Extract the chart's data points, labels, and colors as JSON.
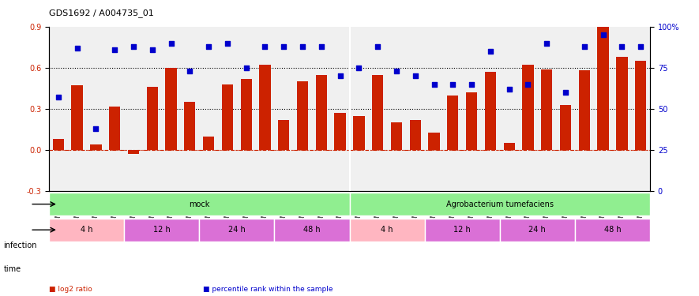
{
  "title": "GDS1692 / A004735_01",
  "samples": [
    "GSM94186",
    "GSM94187",
    "GSM94188",
    "GSM94201",
    "GSM94189",
    "GSM94190",
    "GSM94191",
    "GSM94192",
    "GSM94193",
    "GSM94194",
    "GSM94195",
    "GSM94196",
    "GSM94197",
    "GSM94198",
    "GSM94199",
    "GSM94200",
    "GSM94076",
    "GSM94149",
    "GSM94150",
    "GSM94151",
    "GSM94152",
    "GSM94153",
    "GSM94154",
    "GSM94158",
    "GSM94159",
    "GSM94179",
    "GSM94180",
    "GSM94181",
    "GSM94182",
    "GSM94183",
    "GSM94184",
    "GSM94185"
  ],
  "log2_ratio": [
    0.08,
    0.47,
    0.04,
    0.32,
    -0.03,
    0.46,
    0.6,
    0.35,
    0.1,
    0.48,
    0.52,
    0.62,
    0.22,
    0.5,
    0.55,
    0.27,
    0.25,
    0.55,
    0.2,
    0.22,
    0.13,
    0.4,
    0.42,
    0.57,
    0.05,
    0.62,
    0.59,
    0.33,
    0.58,
    0.9,
    0.68,
    0.65
  ],
  "percentile": [
    0.57,
    0.87,
    0.38,
    0.86,
    0.88,
    0.86,
    0.9,
    0.73,
    0.88,
    0.9,
    0.75,
    0.88,
    0.88,
    0.88,
    0.88,
    0.7,
    0.75,
    0.88,
    0.73,
    0.7,
    0.65,
    0.65,
    0.65,
    0.85,
    0.62,
    0.65,
    0.9,
    0.6,
    0.88,
    0.95,
    0.88,
    0.88
  ],
  "infection_groups": [
    {
      "label": "mock",
      "start": 0,
      "end": 16,
      "color": "#90EE90"
    },
    {
      "label": "Agrobacterium tumefaciens",
      "start": 16,
      "end": 32,
      "color": "#90EE90"
    }
  ],
  "time_groups": [
    {
      "label": "4 h",
      "start": 0,
      "end": 4,
      "color": "#FFB6C1"
    },
    {
      "label": "12 h",
      "start": 4,
      "end": 8,
      "color": "#DA70D6"
    },
    {
      "label": "24 h",
      "start": 8,
      "end": 12,
      "color": "#DA70D6"
    },
    {
      "label": "48 h",
      "start": 12,
      "end": 16,
      "color": "#DA70D6"
    },
    {
      "label": "4 h",
      "start": 16,
      "end": 20,
      "color": "#FFB6C1"
    },
    {
      "label": "12 h",
      "start": 20,
      "end": 24,
      "color": "#DA70D6"
    },
    {
      "label": "24 h",
      "start": 24,
      "end": 28,
      "color": "#DA70D6"
    },
    {
      "label": "48 h",
      "start": 28,
      "end": 32,
      "color": "#DA70D6"
    }
  ],
  "bar_color": "#CC2200",
  "dot_color": "#0000CC",
  "ylim_left": [
    -0.3,
    0.9
  ],
  "ylim_right": [
    0,
    100
  ],
  "yticks_left": [
    -0.3,
    0.0,
    0.3,
    0.6,
    0.9
  ],
  "yticks_right": [
    0,
    25,
    50,
    75,
    100
  ],
  "ytick_right_labels": [
    "0",
    "25",
    "50",
    "75",
    "100%"
  ],
  "hlines": [
    0.0,
    0.3,
    0.6
  ],
  "hline_styles": [
    "dashdot",
    "dotted",
    "dotted"
  ],
  "background_color": "#ffffff",
  "plot_bg_color": "#f0f0f0",
  "infection_label": "infection",
  "time_label": "time",
  "legend_items": [
    {
      "label": "log2 ratio",
      "color": "#CC2200",
      "marker": "s"
    },
    {
      "label": "percentile rank within the sample",
      "color": "#0000CC",
      "marker": "s"
    }
  ]
}
